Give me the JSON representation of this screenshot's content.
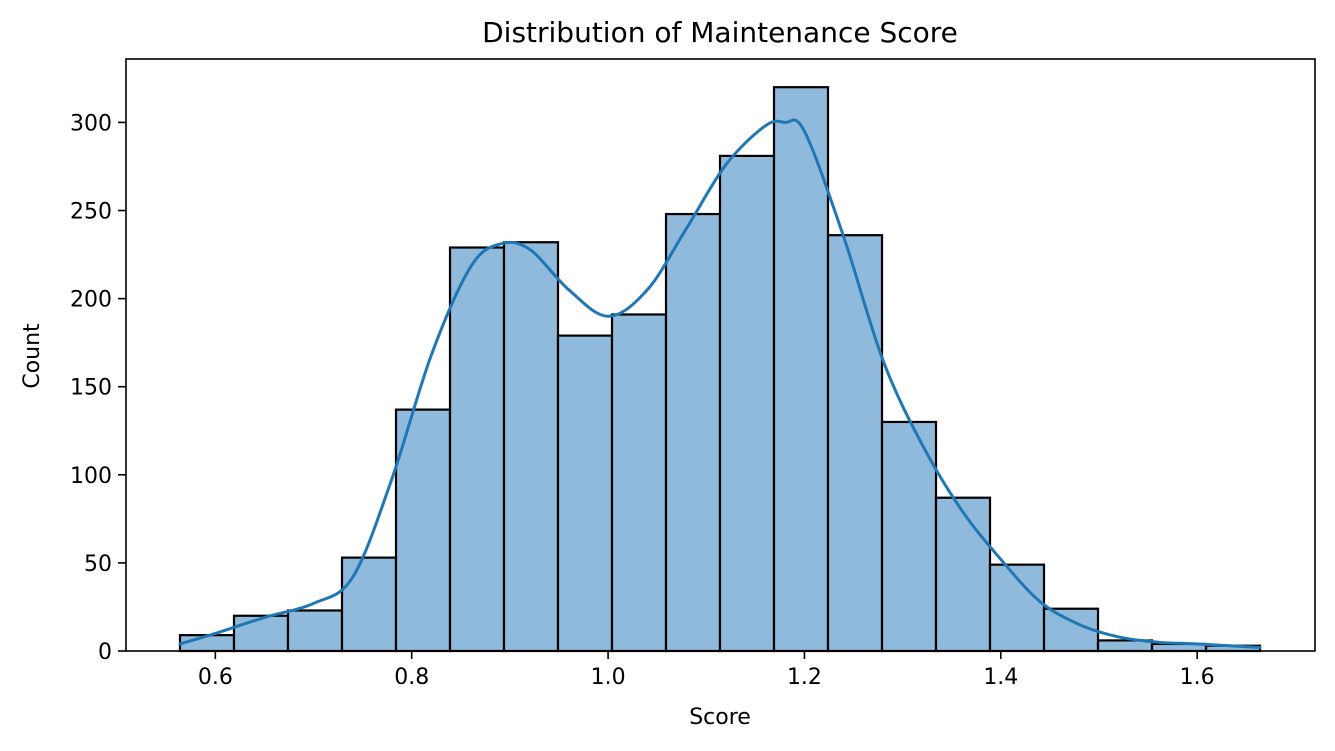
{
  "chart_data": {
    "type": "histogram",
    "title": "Distribution of Maintenance Score",
    "xlabel": "Score",
    "ylabel": "Count",
    "xlim": [
      0.509,
      1.72
    ],
    "ylim": [
      0,
      336
    ],
    "xticks": [
      0.6,
      0.8,
      1.0,
      1.2,
      1.4,
      1.6
    ],
    "xtick_labels": [
      "0.6",
      "0.8",
      "1.0",
      "1.2",
      "1.4",
      "1.6"
    ],
    "yticks": [
      0,
      50,
      100,
      150,
      200,
      250,
      300
    ],
    "ytick_labels": [
      "0",
      "50",
      "100",
      "150",
      "200",
      "250",
      "300"
    ],
    "grid": false,
    "bar_color": "#8fbadb",
    "bar_edge_color": "#000000",
    "line_color": "#1f77b4",
    "bins": [
      {
        "x0": 0.564,
        "x1": 0.619,
        "count": 9
      },
      {
        "x0": 0.619,
        "x1": 0.674,
        "count": 20
      },
      {
        "x0": 0.674,
        "x1": 0.729,
        "count": 23
      },
      {
        "x0": 0.729,
        "x1": 0.784,
        "count": 53
      },
      {
        "x0": 0.784,
        "x1": 0.839,
        "count": 137
      },
      {
        "x0": 0.839,
        "x1": 0.894,
        "count": 229
      },
      {
        "x0": 0.894,
        "x1": 0.949,
        "count": 232
      },
      {
        "x0": 0.949,
        "x1": 1.004,
        "count": 179
      },
      {
        "x0": 1.004,
        "x1": 1.059,
        "count": 191
      },
      {
        "x0": 1.059,
        "x1": 1.114,
        "count": 248
      },
      {
        "x0": 1.114,
        "x1": 1.169,
        "count": 281
      },
      {
        "x0": 1.169,
        "x1": 1.224,
        "count": 320
      },
      {
        "x0": 1.224,
        "x1": 1.279,
        "count": 236
      },
      {
        "x0": 1.279,
        "x1": 1.334,
        "count": 130
      },
      {
        "x0": 1.334,
        "x1": 1.389,
        "count": 87
      },
      {
        "x0": 1.389,
        "x1": 1.444,
        "count": 49
      },
      {
        "x0": 1.444,
        "x1": 1.499,
        "count": 24
      },
      {
        "x0": 1.499,
        "x1": 1.554,
        "count": 6
      },
      {
        "x0": 1.554,
        "x1": 1.609,
        "count": 4
      },
      {
        "x0": 1.609,
        "x1": 1.664,
        "count": 3
      }
    ],
    "kde": {
      "x": [
        0.564,
        0.6,
        0.65,
        0.7,
        0.74,
        0.78,
        0.82,
        0.86,
        0.89,
        0.92,
        0.96,
        1.0,
        1.04,
        1.08,
        1.12,
        1.16,
        1.18,
        1.2,
        1.24,
        1.28,
        1.32,
        1.36,
        1.4,
        1.44,
        1.48,
        1.52,
        1.56,
        1.6,
        1.664
      ],
      "y": [
        4,
        10,
        19,
        27,
        42,
        98,
        168,
        218,
        231,
        228,
        205,
        190,
        205,
        240,
        276,
        298,
        300,
        295,
        235,
        165,
        117,
        80,
        52,
        28,
        15,
        8,
        5,
        4,
        2
      ]
    }
  }
}
